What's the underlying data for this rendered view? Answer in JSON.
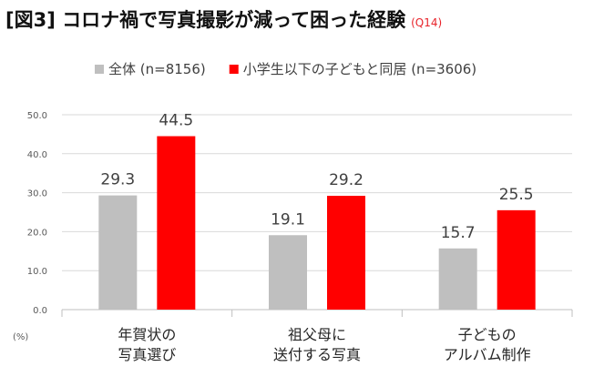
{
  "header": {
    "title": "[図3] コロナ禍で写真撮影が減って困った経験",
    "subtitle": "(Q14)"
  },
  "colors": {
    "series_all": "#bfbfbf",
    "series_children": "#ff0000",
    "grid": "#d9d9d9",
    "axis_text": "#595959",
    "title_accent": "#e8242b"
  },
  "chart_data": {
    "type": "bar",
    "title": "[図3] コロナ禍で写真撮影が減って困った経験",
    "subtitle": "(Q14)",
    "xlabel": "",
    "ylabel": "(%)",
    "ylim": [
      0,
      50
    ],
    "yticks": [
      "0.0",
      "10.0",
      "20.0",
      "30.0",
      "40.0",
      "50.0"
    ],
    "grid": true,
    "legend_position": "top",
    "categories": [
      [
        "年賀状の",
        "写真選び"
      ],
      [
        "祖父母に",
        "送付する写真"
      ],
      [
        "子どもの",
        "アルバム制作"
      ]
    ],
    "series": [
      {
        "name": "全体 (n=8156)",
        "values": [
          29.3,
          19.1,
          15.7
        ],
        "labels": [
          "29.3",
          "19.1",
          "15.7"
        ],
        "color": "#bfbfbf"
      },
      {
        "name": "小学生以下の子どもと同居 (n=3606)",
        "values": [
          44.5,
          29.2,
          25.5
        ],
        "labels": [
          "44.5",
          "29.2",
          "25.5"
        ],
        "color": "#ff0000"
      }
    ]
  }
}
